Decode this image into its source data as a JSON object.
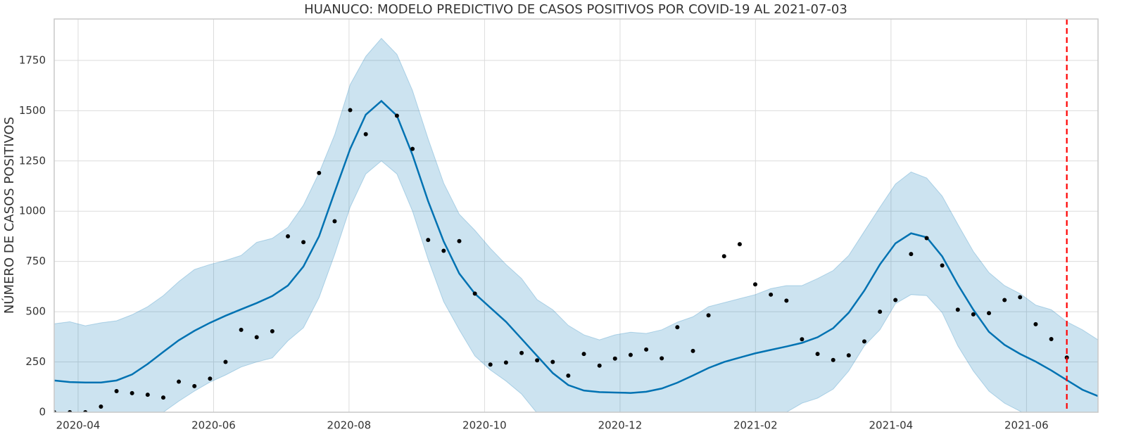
{
  "chart_data": {
    "type": "forecast",
    "title": "HUANUCO: MODELO PREDICTIVO DE CASOS POSITIVOS POR COVID-19 AL 2021-07-03",
    "y_label": "NÚMERO DE CASOS POSITIVOS",
    "x": [
      2020.2206,
      2020.2398,
      2020.2589,
      2020.2781,
      2020.2973,
      2020.3164,
      2020.3356,
      2020.3548,
      2020.3739,
      2020.3931,
      2020.4123,
      2020.4314,
      2020.4506,
      2020.4697,
      2020.4889,
      2020.5081,
      2020.5272,
      2020.5464,
      2020.5656,
      2020.5847,
      2020.6039,
      2020.6231,
      2020.6422,
      2020.6614,
      2020.6806,
      2020.6997,
      2020.7189,
      2020.7381,
      2020.7572,
      2020.7764,
      2020.7956,
      2020.8147,
      2020.8339,
      2020.853,
      2020.8722,
      2020.8914,
      2020.9105,
      2020.9297,
      2020.9489,
      2020.968,
      2020.9872,
      2021.0064,
      2021.0255,
      2021.0447,
      2021.0639,
      2021.083,
      2021.1022,
      2021.1214,
      2021.1405,
      2021.1597,
      2021.1789,
      2021.198,
      2021.2172,
      2021.2364,
      2021.2555,
      2021.2747,
      2021.2939,
      2021.313,
      2021.3322,
      2021.3513,
      2021.3705,
      2021.3897,
      2021.4088,
      2021.428,
      2021.4472,
      2021.4663,
      2021.4855,
      2021.5047
    ],
    "y": [
      0,
      0,
      0,
      28,
      105,
      95,
      87,
      73,
      152,
      130,
      167,
      250,
      410,
      373,
      403,
      875,
      846,
      1190,
      950,
      1503,
      1383,
      null,
      1475,
      1310,
      857,
      803,
      851,
      590,
      237,
      247,
      295,
      258,
      250,
      182,
      290,
      232,
      267,
      285,
      312,
      268,
      423,
      305,
      482,
      776,
      836,
      636,
      585,
      555,
      363,
      290,
      260,
      283,
      352,
      500,
      558,
      787,
      866,
      730,
      510,
      487,
      493,
      558,
      572,
      438,
      364,
      272,
      null,
      null
    ],
    "yhat": [
      158,
      150,
      148,
      148,
      158,
      188,
      240,
      300,
      358,
      405,
      445,
      480,
      512,
      543,
      578,
      630,
      725,
      875,
      1095,
      1310,
      1480,
      1548,
      1475,
      1280,
      1050,
      850,
      690,
      590,
      520,
      450,
      365,
      280,
      195,
      135,
      108,
      100,
      98,
      96,
      102,
      118,
      147,
      183,
      220,
      250,
      272,
      293,
      310,
      327,
      345,
      373,
      418,
      495,
      605,
      735,
      840,
      890,
      870,
      775,
      635,
      510,
      400,
      335,
      290,
      252,
      208,
      160,
      112,
      80
    ],
    "yhat_lower": [
      -135,
      -150,
      -140,
      -140,
      -130,
      -100,
      -40,
      0,
      55,
      105,
      150,
      185,
      225,
      250,
      270,
      355,
      420,
      570,
      785,
      1020,
      1185,
      1250,
      1185,
      1000,
      760,
      550,
      410,
      280,
      210,
      155,
      90,
      -5,
      -80,
      -160,
      -190,
      -200,
      -210,
      -210,
      -200,
      -180,
      -150,
      -110,
      -80,
      -50,
      -30,
      -10,
      0,
      0,
      45,
      70,
      115,
      205,
      330,
      410,
      540,
      585,
      580,
      495,
      330,
      205,
      105,
      45,
      5,
      -40,
      -90,
      -130,
      -160,
      -190
    ],
    "yhat_upper": [
      440,
      450,
      430,
      445,
      455,
      485,
      525,
      580,
      650,
      710,
      735,
      755,
      780,
      845,
      865,
      920,
      1030,
      1190,
      1380,
      1630,
      1770,
      1860,
      1780,
      1600,
      1360,
      1140,
      985,
      905,
      815,
      735,
      665,
      560,
      510,
      432,
      385,
      360,
      385,
      398,
      392,
      410,
      448,
      475,
      525,
      545,
      565,
      585,
      615,
      630,
      630,
      665,
      705,
      780,
      900,
      1020,
      1135,
      1195,
      1165,
      1075,
      935,
      800,
      695,
      630,
      590,
      533,
      510,
      450,
      410,
      360
    ],
    "vline": 2021.4663,
    "xlim": [
      2020.2206,
      2021.5047
    ],
    "ylim": [
      0,
      1956
    ],
    "xticks": [
      {
        "value": 2020.25,
        "label": "2020-04"
      },
      {
        "value": 2020.4167,
        "label": "2020-06"
      },
      {
        "value": 2020.5833,
        "label": "2020-08"
      },
      {
        "value": 2020.75,
        "label": "2020-10"
      },
      {
        "value": 2020.9167,
        "label": "2020-12"
      },
      {
        "value": 2021.0833,
        "label": "2021-02"
      },
      {
        "value": 2021.25,
        "label": "2021-04"
      },
      {
        "value": 2021.4167,
        "label": "2021-06"
      }
    ],
    "yticks": [
      0,
      250,
      500,
      750,
      1000,
      1250,
      1500,
      1750
    ],
    "grid": true,
    "point_color": "#000000",
    "line_color": "#0072B2",
    "band_color": "#0072B2",
    "vline_color": "#ff0000"
  }
}
